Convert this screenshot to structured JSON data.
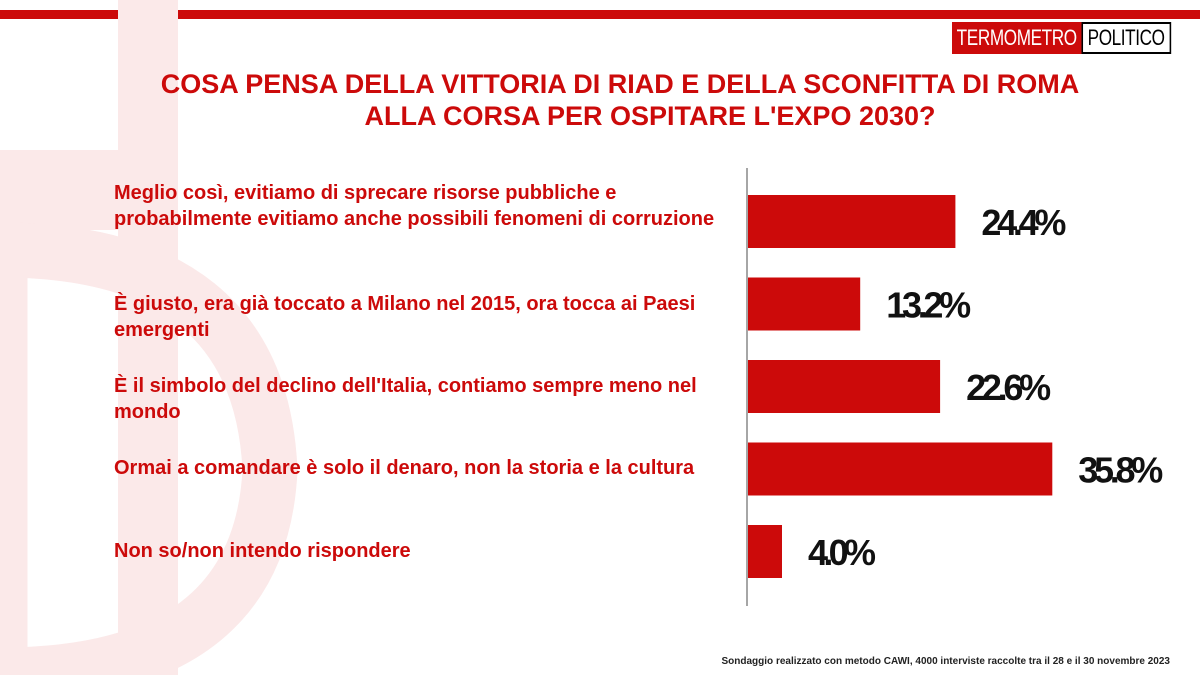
{
  "colors": {
    "brand_red": "#cc0a0a",
    "value_text": "#111111"
  },
  "logo": {
    "part1": "TERMOMETRO",
    "part2": "POLITICO"
  },
  "title": {
    "line1": "COSA PENSA DELLA VITTORIA DI RIAD E DELLA SCONFITTA DI ROMA",
    "line2": "ALLA CORSA PER OSPITARE L'EXPO 2030?"
  },
  "chart_data": {
    "type": "bar",
    "orientation": "horizontal",
    "categories": [
      "Meglio così, evitiamo di sprecare risorse pubbliche e probabilmente evitiamo anche possibili fenomeni di corruzione",
      "È giusto, era già  toccato a Milano nel 2015, ora tocca ai Paesi emergenti",
      "È il simbolo del declino dell'Italia, contiamo sempre meno nel mondo",
      "Ormai a comandare è solo il denaro, non la storia e la cultura",
      "Non so/non intendo rispondere"
    ],
    "values": [
      24.4,
      13.2,
      22.6,
      35.8,
      4.0
    ],
    "labels": [
      "24.4%",
      "13.2%",
      "22.6%",
      "35.8%",
      "4.0%"
    ],
    "xlim": [
      0,
      40
    ],
    "grid": false,
    "legend": "none"
  },
  "footer": "Sondaggio realizzato con metodo CAWI, 4000 interviste raccolte tra il 28 e il 30 novembre 2023"
}
